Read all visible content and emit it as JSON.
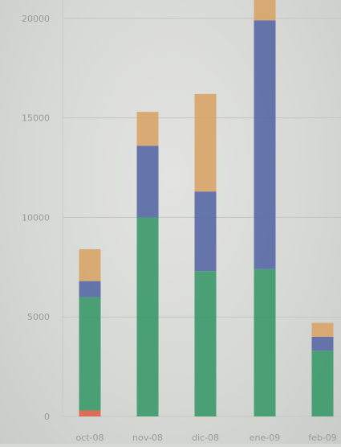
{
  "chart_data": {
    "type": "bar",
    "stacked": true,
    "categories": [
      "oct-08",
      "nov-08",
      "dic-08",
      "ene-09",
      "feb-09"
    ],
    "series": [
      {
        "values": [
          300,
          0,
          0,
          0,
          0
        ],
        "color": "#e0614a"
      },
      {
        "values": [
          5700,
          10000,
          7300,
          7400,
          3300
        ],
        "color": "#3e9a6c"
      },
      {
        "values": [
          800,
          3600,
          4000,
          12500,
          700
        ],
        "color": "#5b6aa7"
      },
      {
        "values": [
          1600,
          1700,
          4900,
          1200,
          700
        ],
        "color": "#d9a56a"
      }
    ],
    "yticks": [
      0,
      5000,
      10000,
      15000,
      20000
    ],
    "ytick_labels": [
      "0",
      "5000",
      "10000",
      "15000",
      "20000"
    ],
    "ylim": [
      0,
      20900
    ],
    "grid": "horizontal",
    "title": "",
    "xlabel": "",
    "ylabel": ""
  }
}
